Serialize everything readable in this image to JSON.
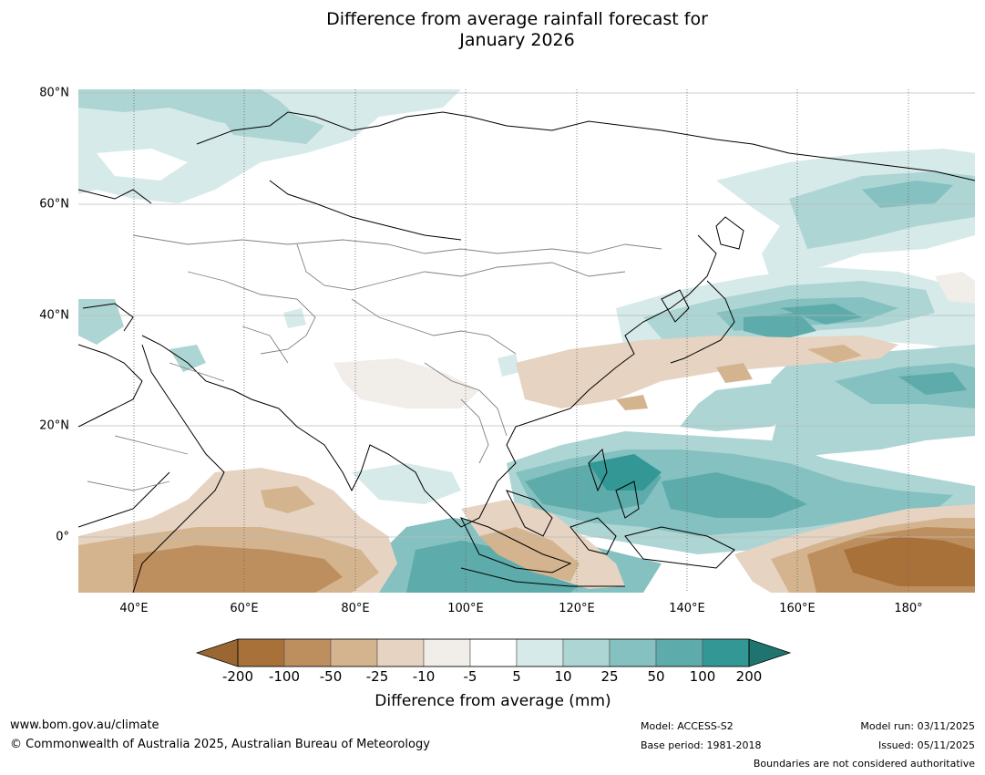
{
  "title_line1": "Difference from average rainfall forecast for",
  "title_line2": "January 2026",
  "map": {
    "region": "Asia and western Pacific",
    "lon_range": [
      30,
      192
    ],
    "lat_range": [
      -10,
      80
    ],
    "y_ticks": [
      {
        "value": 80,
        "label": "80°N"
      },
      {
        "value": 60,
        "label": "60°N"
      },
      {
        "value": 40,
        "label": "40°N"
      },
      {
        "value": 20,
        "label": "20°N"
      },
      {
        "value": 0,
        "label": "0°"
      }
    ],
    "x_ticks": [
      {
        "value": 40,
        "label": "40°E"
      },
      {
        "value": 60,
        "label": "60°E"
      },
      {
        "value": 80,
        "label": "80°E"
      },
      {
        "value": 100,
        "label": "100°E"
      },
      {
        "value": 120,
        "label": "120°E"
      },
      {
        "value": 140,
        "label": "140°E"
      },
      {
        "value": 160,
        "label": "160°E"
      },
      {
        "value": 180,
        "label": "180°"
      }
    ]
  },
  "colorbar": {
    "title": "Difference from average (mm)",
    "tick_labels": [
      "-200",
      "-100",
      "-50",
      "-25",
      "-10",
      "-5",
      "5",
      "10",
      "25",
      "50",
      "100",
      "200"
    ],
    "colors": [
      "#a87139",
      "#be8f5e",
      "#d4b48f",
      "#e6d3c1",
      "#f1ede9",
      "#ffffff",
      "#d6eae9",
      "#acd5d4",
      "#84c1c0",
      "#5dabaa",
      "#339895",
      "#1f7d79"
    ],
    "below_color": "#9a6632",
    "above_color": "#1f7470"
  },
  "footer": {
    "website": "www.bom.gov.au/climate",
    "copyright": "© Commonwealth of Australia 2025, Australian Bureau of Meteorology",
    "model": "Model: ACCESS-S2",
    "base_period": "Base period: 1981-2018",
    "model_run": "Model run: 03/11/2025",
    "issued": "Issued: 05/11/2025",
    "disclaimer": "Boundaries are not considered authoritative"
  }
}
